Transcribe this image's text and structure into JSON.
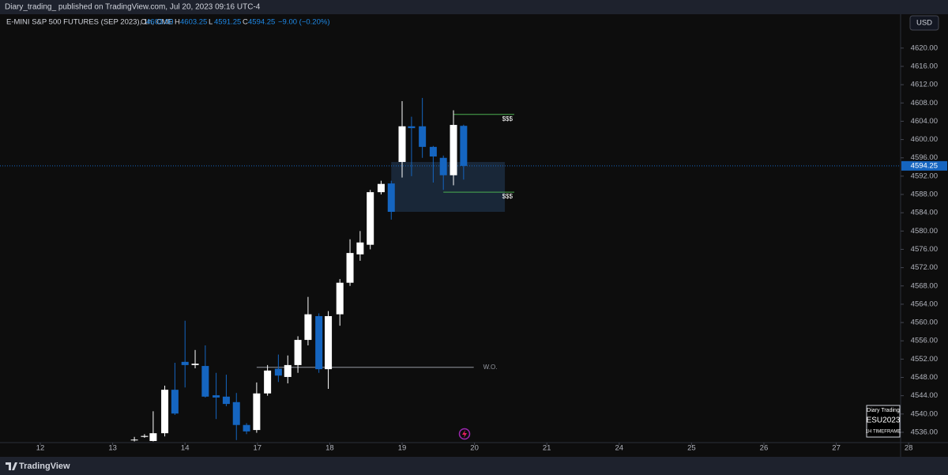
{
  "header": {
    "publisher": "Diary_trading_ published on TradingView.com, Jul 20, 2023 09:16 UTC-4",
    "symbol": "E-MINI S&P 500 FUTURES (SEP 2023), 1h, CME",
    "ohlc": [
      {
        "letter": "O",
        "text": "4603.00"
      },
      {
        "letter": "H",
        "text": "4603.25"
      },
      {
        "letter": "L",
        "text": "4591.25"
      },
      {
        "letter": "C",
        "text": "4594.25"
      }
    ],
    "change": "−9.00 (−0.20%)",
    "currency": "USD"
  },
  "watermark": {
    "line1": "Diary Trading",
    "line2": "ESU2023",
    "line3": "1H TIMEFRAME"
  },
  "footer": {
    "brand": "TradingView"
  },
  "chart_data": {
    "type": "candlestick",
    "up_color": "#ffffff",
    "down_color": "#1565c0",
    "x": [
      1.3,
      1.44,
      1.56,
      1.72,
      1.86,
      2.0,
      2.14,
      2.28,
      2.43,
      2.57,
      2.71,
      2.85,
      2.99,
      3.14,
      3.29,
      3.42,
      3.56,
      3.7,
      3.85,
      3.98,
      4.14,
      4.28,
      4.42,
      4.56,
      4.71,
      4.85,
      5.0,
      5.13,
      5.28,
      5.43,
      5.57,
      5.71,
      5.85
    ],
    "open": [
      4534.4,
      4535.0,
      4534.1,
      4535.8,
      4545.3,
      4551.4,
      4550.7,
      4550.5,
      4544.1,
      4543.8,
      4542.6,
      4537.6,
      4536.5,
      4544.5,
      4549.9,
      4548.1,
      4550.7,
      4556.2,
      4561.4,
      4549.8,
      4561.8,
      4568.7,
      4574.9,
      4577.0,
      4588.5,
      4590.4,
      4595.1,
      4602.9,
      4602.9,
      4598.4,
      4596.0,
      4592.2,
      4603.0
    ],
    "high": [
      4535.0,
      4535.6,
      4540.6,
      4546.2,
      4551.2,
      4560.4,
      4554.0,
      4555.0,
      4549.0,
      4548.6,
      4544.6,
      4538.0,
      4546.9,
      4550.7,
      4553.0,
      4552.8,
      4557.0,
      4565.6,
      4562.0,
      4562.5,
      4569.5,
      4578.2,
      4580.0,
      4589.0,
      4591.0,
      4591.0,
      4608.4,
      4605.0,
      4609.1,
      4598.6,
      4596.5,
      4606.4,
      4603.25
    ],
    "low": [
      4534.0,
      4534.8,
      4534.0,
      4535.1,
      4539.8,
      4545.8,
      4550.0,
      4543.6,
      4538.9,
      4541.7,
      4534.3,
      4535.6,
      4535.9,
      4544.0,
      4547.0,
      4546.7,
      4549.0,
      4555.0,
      4549.0,
      4545.5,
      4559.3,
      4568.0,
      4573.5,
      4576.0,
      4588.0,
      4582.5,
      4591.7,
      4592.0,
      4596.0,
      4590.6,
      4589.0,
      4590.0,
      4591.25
    ],
    "close": [
      4534.4,
      4535.2,
      4535.8,
      4545.3,
      4540.1,
      4550.7,
      4551.0,
      4543.8,
      4543.6,
      4542.2,
      4537.6,
      4536.2,
      4544.5,
      4549.5,
      4548.4,
      4550.7,
      4556.2,
      4561.8,
      4549.8,
      4561.4,
      4568.7,
      4575.2,
      4577.5,
      4588.5,
      4590.3,
      4584.2,
      4602.9,
      4602.5,
      4598.4,
      4596.3,
      4592.2,
      4603.2,
      4594.25
    ],
    "ylim": [
      4533.75,
      4627.4
    ],
    "yticks": [
      {
        "value": 4536,
        "label": "4536.00"
      },
      {
        "value": 4540,
        "label": "4540.00"
      },
      {
        "value": 4544,
        "label": "4544.00"
      },
      {
        "value": 4548,
        "label": "4548.00"
      },
      {
        "value": 4552,
        "label": "4552.00"
      },
      {
        "value": 4556,
        "label": "4556.00"
      },
      {
        "value": 4560,
        "label": "4560.00"
      },
      {
        "value": 4564,
        "label": "4564.00"
      },
      {
        "value": 4568,
        "label": "4568.00"
      },
      {
        "value": 4572,
        "label": "4572.00"
      },
      {
        "value": 4576,
        "label": "4576.00"
      },
      {
        "value": 4580,
        "label": "4580.00"
      },
      {
        "value": 4584,
        "label": "4584.00"
      },
      {
        "value": 4588,
        "label": "4588.00"
      },
      {
        "value": 4592,
        "label": "4592.00"
      },
      {
        "value": 4596,
        "label": "4596.00"
      },
      {
        "value": 4600,
        "label": "4600.00"
      },
      {
        "value": 4604,
        "label": "4604.00"
      },
      {
        "value": 4608,
        "label": "4608.00"
      },
      {
        "value": 4612,
        "label": "4612.00"
      },
      {
        "value": 4616,
        "label": "4616.00"
      },
      {
        "value": 4620,
        "label": "4620.00"
      }
    ],
    "xlim": [
      -0.557,
      11.889
    ],
    "xticks": [
      {
        "value": 0,
        "label": "12"
      },
      {
        "value": 1,
        "label": "13"
      },
      {
        "value": 2,
        "label": "14"
      },
      {
        "value": 3,
        "label": "17"
      },
      {
        "value": 4,
        "label": "18"
      },
      {
        "value": 5,
        "label": "19"
      },
      {
        "value": 6,
        "label": "20"
      },
      {
        "value": 7,
        "label": "21"
      },
      {
        "value": 8,
        "label": "24"
      },
      {
        "value": 9,
        "label": "25"
      },
      {
        "value": 10,
        "label": "26"
      },
      {
        "value": 11,
        "label": "27"
      },
      {
        "value": 12,
        "label": "28"
      }
    ],
    "zone": {
      "top": 4595.1,
      "bottom": 4584.2,
      "x": [
        4.85,
        6.42
      ],
      "color": "#1b2a3d"
    },
    "annotations": [
      {
        "text": "$$$",
        "value": 4605.5,
        "x": [
          5.71,
          6.55
        ],
        "color": "#4caf50"
      },
      {
        "text": "$$$",
        "value": 4588.5,
        "x": [
          5.57,
          6.55
        ],
        "color": "#4caf50"
      },
      {
        "text": "W.O.",
        "value": 4550.2,
        "x": [
          2.99,
          5.99
        ],
        "color": "#9598a1"
      }
    ],
    "last_price_color": "#1565c0"
  }
}
